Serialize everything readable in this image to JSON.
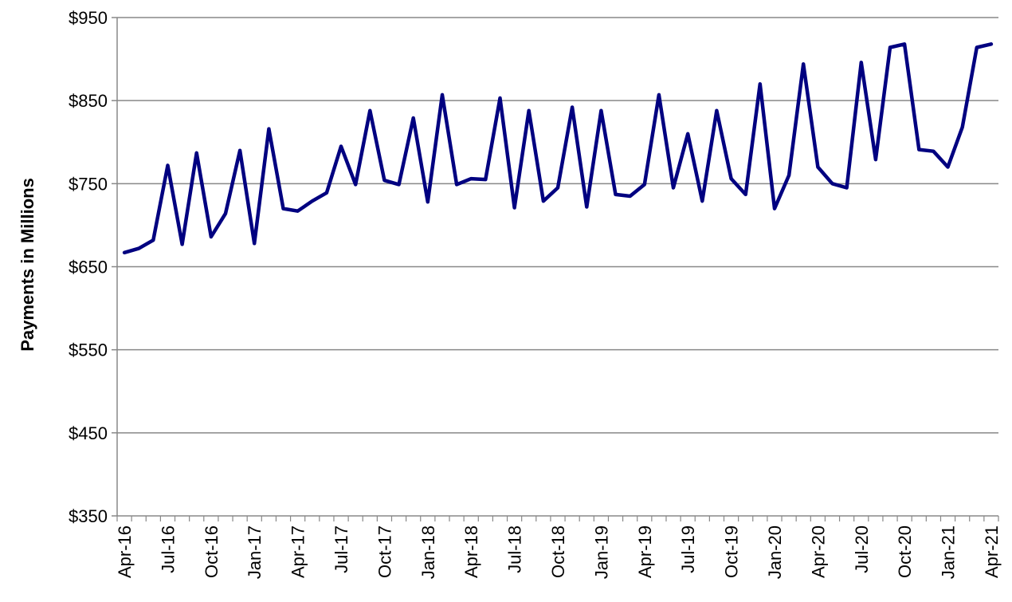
{
  "chart_data": {
    "type": "line",
    "title": "",
    "xlabel": "",
    "ylabel": "Payments in Millions",
    "ylim": [
      350,
      950
    ],
    "yticks": [
      "$950",
      "$850",
      "$750",
      "$650",
      "$550",
      "$450",
      "$350"
    ],
    "ytick_values": [
      950,
      850,
      750,
      650,
      550,
      450,
      350
    ],
    "x_tick_labels": [
      "Apr-16",
      "Jul-16",
      "Oct-16",
      "Jan-17",
      "Apr-17",
      "Jul-17",
      "Oct-17",
      "Jan-18",
      "Apr-18",
      "Jul-18",
      "Oct-18",
      "Jan-19",
      "Apr-19",
      "Jul-19",
      "Oct-19",
      "Jan-20",
      "Apr-20",
      "Jul-20",
      "Oct-20",
      "Jan-21",
      "Apr-21"
    ],
    "grid": true,
    "legend": "none",
    "line_color": "#000080",
    "x": [
      "Apr-16",
      "May-16",
      "Jun-16",
      "Jul-16",
      "Aug-16",
      "Sep-16",
      "Oct-16",
      "Nov-16",
      "Dec-16",
      "Jan-17",
      "Feb-17",
      "Mar-17",
      "Apr-17",
      "May-17",
      "Jun-17",
      "Jul-17",
      "Aug-17",
      "Sep-17",
      "Oct-17",
      "Nov-17",
      "Dec-17",
      "Jan-18",
      "Feb-18",
      "Mar-18",
      "Apr-18",
      "May-18",
      "Jun-18",
      "Jul-18",
      "Aug-18",
      "Sep-18",
      "Oct-18",
      "Nov-18",
      "Dec-18",
      "Jan-19",
      "Feb-19",
      "Mar-19",
      "Apr-19",
      "May-19",
      "Jun-19",
      "Jul-19",
      "Aug-19",
      "Sep-19",
      "Oct-19",
      "Nov-19",
      "Dec-19",
      "Jan-20",
      "Feb-20",
      "Mar-20",
      "Apr-20",
      "May-20",
      "Jun-20",
      "Jul-20",
      "Aug-20",
      "Sep-20",
      "Oct-20",
      "Nov-20",
      "Dec-20",
      "Jan-21",
      "Feb-21",
      "Mar-21",
      "Apr-21"
    ],
    "series": [
      {
        "values": [
          667,
          672,
          682,
          772,
          677,
          787,
          686,
          714,
          790,
          678,
          816,
          720,
          717,
          729,
          739,
          795,
          749,
          838,
          754,
          749,
          829,
          728,
          857,
          749,
          756,
          755,
          853,
          721,
          838,
          729,
          745,
          842,
          722,
          838,
          737,
          735,
          749,
          857,
          745,
          810,
          729,
          838,
          756,
          737,
          870,
          720,
          760,
          894,
          770,
          750,
          745,
          896,
          779,
          914,
          918,
          791,
          789,
          770,
          818,
          914,
          918
        ]
      }
    ]
  }
}
